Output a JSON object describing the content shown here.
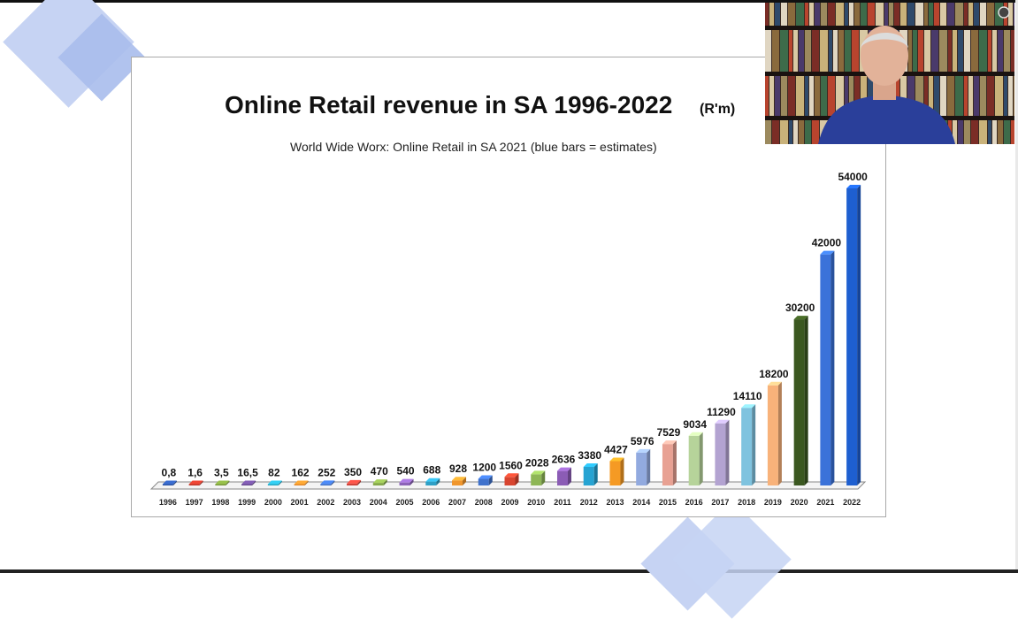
{
  "colors": {
    "background": "#ffffff",
    "axis": "#888888",
    "estimate_blue": "#2f62c9"
  },
  "webcam": {
    "icon": "video-person-icon"
  },
  "chart_data": {
    "type": "bar",
    "title": "Online Retail revenue in SA 1996-2022",
    "unit": "(R'm)",
    "subtitle": "World Wide Worx: Online Retail in SA 2021 (blue bars = estimates)",
    "xlabel": "",
    "ylabel": "",
    "ylim": [
      0,
      54000
    ],
    "grid": false,
    "legend": "none",
    "categories": [
      "1996",
      "1997",
      "1998",
      "1999",
      "2000",
      "2001",
      "2002",
      "2003",
      "2004",
      "2005",
      "2006",
      "2007",
      "2008",
      "2009",
      "2010",
      "2011",
      "2012",
      "2013",
      "2014",
      "2015",
      "2016",
      "2017",
      "2018",
      "2019",
      "2020",
      "2021",
      "2022"
    ],
    "values": [
      0.8,
      1.6,
      3.5,
      16.5,
      82,
      162,
      252,
      350,
      470,
      540,
      688,
      928,
      1200,
      1560,
      2028,
      2636,
      3380,
      4427,
      5976,
      7529,
      9034,
      11290,
      14110,
      18200,
      30200,
      42000,
      54000
    ],
    "value_labels": [
      "0,8",
      "1,6",
      "3,5",
      "16,5",
      "82",
      "162",
      "252",
      "350",
      "470",
      "540",
      "688",
      "928",
      "1200",
      "1560",
      "2028",
      "2636",
      "3380",
      "4427",
      "5976",
      "7529",
      "9034",
      "11290",
      "14110",
      "18200",
      "30200",
      "42000",
      "54000"
    ],
    "bar_colors": [
      "#2e57a8",
      "#c0392b",
      "#7a9b3c",
      "#6a4c93",
      "#2aa7c4",
      "#e5892b",
      "#3d6fc7",
      "#d0443a",
      "#86a94a",
      "#8c63b8",
      "#2ea0c6",
      "#f0962d",
      "#3f72cc",
      "#d8452f",
      "#8eb656",
      "#8b5cb5",
      "#26a3d2",
      "#f59a24",
      "#92aadf",
      "#e8a193",
      "#b6d39a",
      "#b3a3d1",
      "#7fc3df",
      "#f8b27a",
      "#3b5820",
      "#3b72d9",
      "#1e5fd0"
    ]
  }
}
